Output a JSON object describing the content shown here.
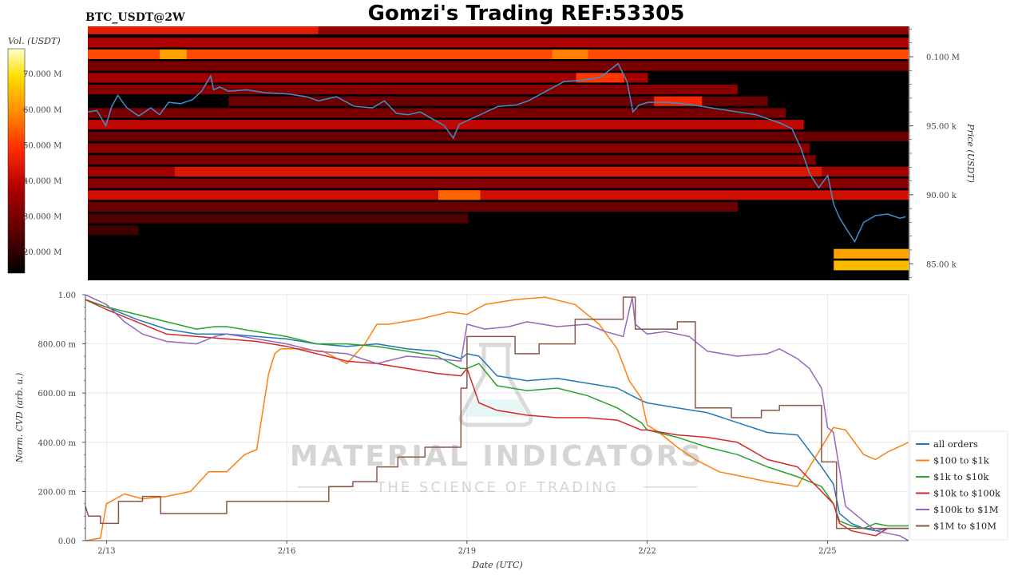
{
  "header": {
    "symbol": "BTC_USDT@2W",
    "title": "Gomzi's Trading REF:53305"
  },
  "colors": {
    "price_line": "#3a8fd0",
    "heatmap_scale": [
      "#000000",
      "#5a0000",
      "#b00000",
      "#ff2a00",
      "#ff8c00",
      "#ffe000",
      "#ffffd0"
    ]
  },
  "colorbar": {
    "label": "Vol. (USDT)",
    "ticks": [
      "20.000 M",
      "30.000 M",
      "40.000 M",
      "50.000 M",
      "60.000 M",
      "70.000 M"
    ],
    "tick_values": [
      20,
      30,
      40,
      50,
      60,
      70
    ],
    "range": [
      14,
      77
    ]
  },
  "watermark": {
    "line1": "MATERIAL INDICATORS",
    "line2": "THE SCIENCE OF TRADING"
  },
  "chart_data": [
    {
      "type": "heatmap",
      "description_of_axes": "price on right axis",
      "ylabel": "Price (USDT)",
      "ytick_labels": [
        "85.00 k",
        "90.00 k",
        "95.00 k",
        "0.100 M"
      ],
      "ytick_values": [
        85000,
        90000,
        95000,
        100000
      ],
      "ylim": [
        83800,
        102200
      ],
      "xlim": [
        12.65,
        26.35
      ],
      "price_series": {
        "name": "",
        "x": [
          12.65,
          12.8,
          12.95,
          13.05,
          13.15,
          13.3,
          13.5,
          13.7,
          13.85,
          14.0,
          14.2,
          14.4,
          14.55,
          14.7,
          14.75,
          14.85,
          15.0,
          15.3,
          15.6,
          16.0,
          16.3,
          16.5,
          16.8,
          17.1,
          17.4,
          17.6,
          17.8,
          18.0,
          18.2,
          18.4,
          18.6,
          18.75,
          18.85,
          19.0,
          19.2,
          19.5,
          19.8,
          20.0,
          20.3,
          20.6,
          20.9,
          21.2,
          21.5,
          21.65,
          21.75,
          21.85,
          22.0,
          22.3,
          22.6,
          22.9,
          23.2,
          23.5,
          23.8,
          24.0,
          24.2,
          24.4,
          24.55,
          24.7,
          24.85,
          25.0,
          25.1,
          25.2,
          25.3,
          25.45,
          25.6,
          25.8,
          26.0,
          26.2,
          26.3
        ],
        "y": [
          96000,
          96100,
          95000,
          96400,
          97200,
          96300,
          95700,
          96300,
          95800,
          96700,
          96600,
          96900,
          97500,
          98600,
          97600,
          97800,
          97500,
          97600,
          97400,
          97300,
          97100,
          96800,
          97100,
          96400,
          96300,
          96800,
          95900,
          95800,
          96000,
          95500,
          95000,
          94100,
          95100,
          95400,
          95800,
          96400,
          96500,
          96800,
          97500,
          98200,
          98300,
          98500,
          99500,
          98200,
          96000,
          96500,
          96700,
          96700,
          96600,
          96400,
          96200,
          96000,
          95800,
          95500,
          95200,
          94800,
          93400,
          91500,
          90500,
          91400,
          89300,
          88300,
          87600,
          86600,
          88000,
          88500,
          88600,
          88300,
          88400
        ]
      },
      "bands": [
        {
          "price": 101900,
          "from": 12.65,
          "to": 16.5,
          "level": 45
        },
        {
          "price": 101900,
          "from": 16.5,
          "to": 26.35,
          "level": 34
        },
        {
          "price": 100950,
          "from": 12.65,
          "to": 26.35,
          "level": 38
        },
        {
          "price": 100100,
          "from": 12.65,
          "to": 26.35,
          "level": 52
        },
        {
          "price": 100100,
          "from": 13.85,
          "to": 14.3,
          "level": 62
        },
        {
          "price": 100100,
          "from": 20.4,
          "to": 21.0,
          "level": 58
        },
        {
          "price": 99250,
          "from": 12.65,
          "to": 26.35,
          "level": 30
        },
        {
          "price": 98400,
          "from": 12.65,
          "to": 22.0,
          "level": 36
        },
        {
          "price": 98400,
          "from": 20.8,
          "to": 21.6,
          "level": 50
        },
        {
          "price": 97550,
          "from": 12.65,
          "to": 23.5,
          "level": 32
        },
        {
          "price": 96700,
          "from": 15.0,
          "to": 24.0,
          "level": 28
        },
        {
          "price": 96700,
          "from": 22.1,
          "to": 22.9,
          "level": 48
        },
        {
          "price": 95850,
          "from": 12.65,
          "to": 24.3,
          "level": 30
        },
        {
          "price": 95000,
          "from": 12.65,
          "to": 24.6,
          "level": 40
        },
        {
          "price": 94150,
          "from": 12.65,
          "to": 26.35,
          "level": 28
        },
        {
          "price": 93300,
          "from": 12.65,
          "to": 24.7,
          "level": 33
        },
        {
          "price": 92450,
          "from": 12.65,
          "to": 24.8,
          "level": 30
        },
        {
          "price": 91600,
          "from": 12.65,
          "to": 26.35,
          "level": 36
        },
        {
          "price": 91600,
          "from": 14.1,
          "to": 24.9,
          "level": 44
        },
        {
          "price": 90750,
          "from": 12.65,
          "to": 26.35,
          "level": 32
        },
        {
          "price": 89900,
          "from": 12.65,
          "to": 26.35,
          "level": 42
        },
        {
          "price": 89900,
          "from": 18.5,
          "to": 19.2,
          "level": 55
        },
        {
          "price": 89050,
          "from": 12.65,
          "to": 23.5,
          "level": 28
        },
        {
          "price": 88200,
          "from": 12.65,
          "to": 19.0,
          "level": 24
        },
        {
          "price": 87350,
          "from": 12.65,
          "to": 13.5,
          "level": 22
        },
        {
          "price": 85650,
          "from": 25.1,
          "to": 26.35,
          "level": 62
        },
        {
          "price": 84800,
          "from": 25.1,
          "to": 26.35,
          "level": 65
        }
      ]
    },
    {
      "type": "line",
      "xlabel": "Date (UTC)",
      "ylabel": "Norm. CVD (arb. u.)",
      "ylim": [
        0,
        1
      ],
      "xlim": [
        12.65,
        26.35
      ],
      "ytick_labels": [
        "0.00",
        "200.00 m",
        "400.00 m",
        "600.00 m",
        "800.00 m",
        "1.00"
      ],
      "ytick_values": [
        0,
        0.2,
        0.4,
        0.6,
        0.8,
        1.0
      ],
      "xtick_labels": [
        "2/13",
        "2/16",
        "2/19",
        "2/22",
        "2/25"
      ],
      "xtick_values": [
        13,
        16,
        19,
        22,
        25
      ],
      "grid": true,
      "legend_position": "right",
      "series": [
        {
          "name": "all orders",
          "color": "#1f77b4",
          "x": [
            12.65,
            13.0,
            13.5,
            14.0,
            14.5,
            15.0,
            15.5,
            16.0,
            16.5,
            17.0,
            17.5,
            18.0,
            18.5,
            18.9,
            19.0,
            19.2,
            19.5,
            20.0,
            20.5,
            21.0,
            21.5,
            21.9,
            22.0,
            22.5,
            23.0,
            23.5,
            24.0,
            24.5,
            24.9,
            25.1,
            25.2,
            25.4,
            25.6,
            25.8,
            26.0,
            26.35
          ],
          "y": [
            0.98,
            0.95,
            0.9,
            0.86,
            0.84,
            0.84,
            0.83,
            0.82,
            0.8,
            0.79,
            0.8,
            0.78,
            0.77,
            0.74,
            0.76,
            0.75,
            0.67,
            0.65,
            0.66,
            0.64,
            0.62,
            0.57,
            0.56,
            0.54,
            0.52,
            0.48,
            0.44,
            0.43,
            0.3,
            0.23,
            0.11,
            0.07,
            0.05,
            0.04,
            0.05,
            0.05
          ]
        },
        {
          "name": "$100 to $1k",
          "color": "#ff7f0e",
          "x": [
            12.65,
            12.9,
            13.0,
            13.3,
            13.6,
            14.0,
            14.4,
            14.7,
            15.0,
            15.3,
            15.5,
            15.7,
            15.8,
            15.9,
            16.2,
            16.6,
            17.0,
            17.3,
            17.5,
            17.7,
            18.2,
            18.7,
            19.0,
            19.3,
            19.8,
            20.3,
            20.8,
            21.2,
            21.5,
            21.7,
            21.9,
            22.0,
            22.2,
            22.5,
            22.8,
            23.2,
            23.6,
            24.0,
            24.5,
            24.8,
            25.0,
            25.1,
            25.3,
            25.6,
            25.8,
            26.0,
            26.35
          ],
          "y": [
            0.0,
            0.01,
            0.15,
            0.19,
            0.17,
            0.18,
            0.2,
            0.28,
            0.28,
            0.35,
            0.37,
            0.68,
            0.76,
            0.78,
            0.78,
            0.77,
            0.72,
            0.8,
            0.88,
            0.88,
            0.9,
            0.93,
            0.92,
            0.96,
            0.98,
            0.99,
            0.96,
            0.88,
            0.78,
            0.65,
            0.58,
            0.47,
            0.44,
            0.38,
            0.33,
            0.28,
            0.26,
            0.24,
            0.22,
            0.34,
            0.42,
            0.46,
            0.45,
            0.35,
            0.33,
            0.36,
            0.4
          ]
        },
        {
          "name": "$1k to $10k",
          "color": "#2ca02c",
          "x": [
            12.65,
            13.0,
            13.5,
            14.0,
            14.5,
            14.8,
            15.0,
            15.5,
            16.0,
            16.5,
            17.0,
            17.5,
            18.0,
            18.5,
            18.9,
            19.0,
            19.2,
            19.5,
            20.0,
            20.5,
            21.0,
            21.5,
            21.9,
            22.0,
            22.5,
            23.0,
            23.5,
            24.0,
            24.5,
            24.9,
            25.1,
            25.2,
            25.4,
            25.6,
            25.8,
            26.0,
            26.35
          ],
          "y": [
            0.98,
            0.95,
            0.92,
            0.89,
            0.86,
            0.87,
            0.87,
            0.85,
            0.83,
            0.8,
            0.8,
            0.79,
            0.77,
            0.75,
            0.7,
            0.7,
            0.72,
            0.63,
            0.61,
            0.62,
            0.59,
            0.54,
            0.48,
            0.45,
            0.42,
            0.38,
            0.35,
            0.3,
            0.26,
            0.22,
            0.15,
            0.08,
            0.06,
            0.05,
            0.07,
            0.06,
            0.06
          ]
        },
        {
          "name": "$10k to $100k",
          "color": "#d62728",
          "x": [
            12.65,
            13.0,
            13.5,
            14.0,
            14.5,
            15.0,
            15.5,
            16.0,
            16.5,
            17.0,
            17.5,
            18.0,
            18.5,
            18.9,
            19.0,
            19.2,
            19.5,
            20.0,
            20.5,
            21.0,
            21.5,
            21.9,
            22.0,
            22.5,
            23.0,
            23.5,
            24.0,
            24.5,
            24.9,
            25.1,
            25.2,
            25.4,
            25.6,
            25.8,
            26.0,
            26.35
          ],
          "y": [
            0.98,
            0.94,
            0.89,
            0.84,
            0.83,
            0.82,
            0.81,
            0.79,
            0.76,
            0.73,
            0.72,
            0.7,
            0.68,
            0.67,
            0.7,
            0.56,
            0.53,
            0.51,
            0.5,
            0.5,
            0.49,
            0.45,
            0.45,
            0.43,
            0.42,
            0.4,
            0.33,
            0.3,
            0.2,
            0.15,
            0.07,
            0.04,
            0.03,
            0.02,
            0.05,
            0.05
          ]
        },
        {
          "name": "$100k to $1M",
          "color": "#9467bd",
          "x": [
            12.65,
            13.0,
            13.3,
            13.6,
            14.0,
            14.5,
            14.8,
            15.0,
            15.5,
            16.0,
            16.5,
            17.0,
            17.5,
            18.0,
            18.5,
            18.9,
            19.0,
            19.3,
            19.7,
            20.0,
            20.5,
            21.0,
            21.3,
            21.6,
            21.75,
            21.8,
            22.0,
            22.3,
            22.7,
            23.0,
            23.5,
            24.0,
            24.2,
            24.5,
            24.7,
            24.9,
            25.0,
            25.1,
            25.3,
            25.6,
            25.8,
            26.0,
            26.2,
            26.35
          ],
          "y": [
            1.0,
            0.96,
            0.89,
            0.84,
            0.81,
            0.8,
            0.83,
            0.84,
            0.82,
            0.8,
            0.77,
            0.76,
            0.72,
            0.75,
            0.74,
            0.73,
            0.88,
            0.86,
            0.87,
            0.89,
            0.87,
            0.88,
            0.85,
            0.83,
            0.99,
            0.88,
            0.84,
            0.85,
            0.83,
            0.77,
            0.75,
            0.76,
            0.78,
            0.74,
            0.7,
            0.62,
            0.46,
            0.44,
            0.14,
            0.08,
            0.04,
            0.03,
            0.02,
            0.0
          ]
        },
        {
          "name": "$1M to $10M",
          "color": "#8c564b",
          "x": [
            12.65,
            12.7,
            12.9,
            12.9,
            13.2,
            13.2,
            13.6,
            13.6,
            13.9,
            13.9,
            15.0,
            15.0,
            16.7,
            16.7,
            17.1,
            17.1,
            17.5,
            17.5,
            17.85,
            17.85,
            18.3,
            18.3,
            18.9,
            18.9,
            19.0,
            19.0,
            19.8,
            19.8,
            20.2,
            20.2,
            20.8,
            20.8,
            21.6,
            21.6,
            21.8,
            21.8,
            22.5,
            22.5,
            22.8,
            22.8,
            23.4,
            23.4,
            23.9,
            23.9,
            24.2,
            24.2,
            24.9,
            24.9,
            25.15,
            25.15,
            25.5,
            25.5,
            26.35
          ],
          "y": [
            0.14,
            0.1,
            0.1,
            0.07,
            0.07,
            0.16,
            0.16,
            0.18,
            0.18,
            0.11,
            0.11,
            0.16,
            0.16,
            0.22,
            0.22,
            0.24,
            0.24,
            0.3,
            0.3,
            0.34,
            0.34,
            0.38,
            0.38,
            0.62,
            0.62,
            0.83,
            0.83,
            0.76,
            0.76,
            0.8,
            0.8,
            0.9,
            0.9,
            0.99,
            0.99,
            0.86,
            0.86,
            0.89,
            0.89,
            0.54,
            0.54,
            0.5,
            0.5,
            0.53,
            0.53,
            0.55,
            0.55,
            0.32,
            0.32,
            0.05,
            0.05,
            0.05,
            0.05
          ]
        }
      ]
    }
  ]
}
